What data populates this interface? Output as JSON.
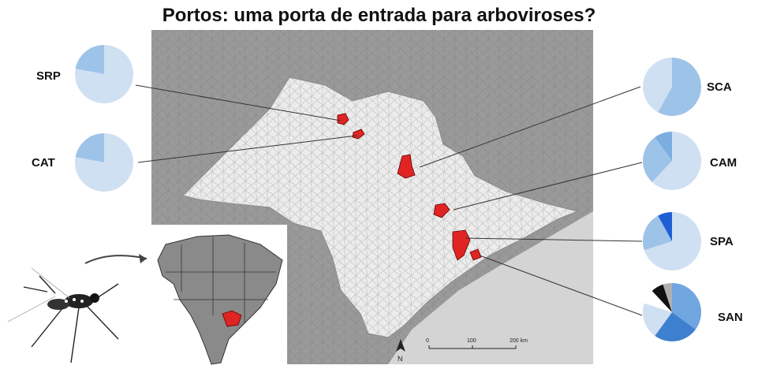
{
  "title": "Portos: uma porta de entrada para arboviroses?",
  "colors": {
    "sea": "#cfcfcf",
    "state_fill": "#ececec",
    "outside_fill": "#9a9a9a",
    "highlight": "#e02424",
    "pie_light": "#cfe0f3",
    "pie_mid": "#9ec3e8"
  },
  "sites": [
    {
      "code": "SRP",
      "slices": [
        0.78,
        0.22
      ],
      "colors": [
        "#cfe0f3",
        "#9ec3e8"
      ]
    },
    {
      "code": "CAT",
      "slices": [
        0.78,
        0.22
      ],
      "colors": [
        "#cfe0f3",
        "#9ec3e8"
      ]
    },
    {
      "code": "SCA",
      "slices": [
        0.58,
        0.42
      ],
      "colors": [
        "#9ec3e8",
        "#cfe0f3"
      ]
    },
    {
      "code": "CAM",
      "slices": [
        0.62,
        0.28,
        0.1
      ],
      "colors": [
        "#cfe0f3",
        "#9ec3e8",
        "#7aaee0"
      ]
    },
    {
      "code": "SPA",
      "slices": [
        0.7,
        0.22,
        0.08
      ],
      "colors": [
        "#cfe0f3",
        "#9ec3e8",
        "#1f5fd6"
      ]
    },
    {
      "code": "SAN",
      "slices": [
        0.35,
        0.25,
        0.2,
        0.08,
        0.07,
        0.05
      ],
      "colors": [
        "#6fa6e0",
        "#3f7fcf",
        "#cfe0f3",
        "#ffffff",
        "#111111",
        "#b0b0b0"
      ]
    }
  ],
  "scalebar": {
    "ticks": [
      "0",
      "100",
      "200 km"
    ]
  },
  "north_label": "N",
  "icons": [
    "mosquito-icon",
    "arrow-icon",
    "north-arrow-icon",
    "brazil-map-icon"
  ]
}
